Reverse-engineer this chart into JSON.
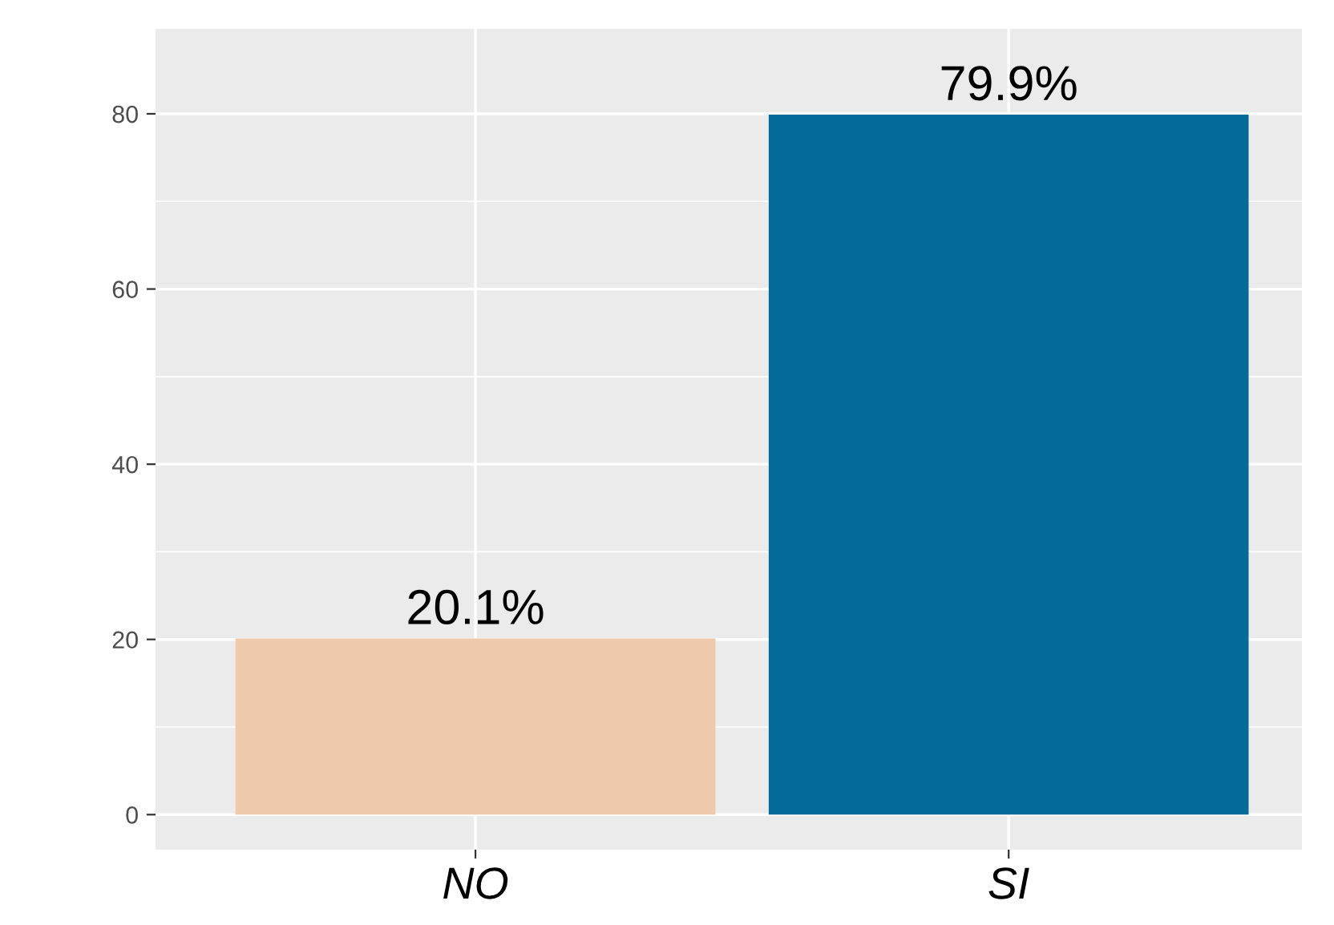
{
  "chart_data": {
    "type": "bar",
    "categories": [
      "NO",
      "SI"
    ],
    "values": [
      20.1,
      79.9
    ],
    "colors": [
      "#eccaab",
      "#036a9a"
    ],
    "value_labels": [
      "20.1%",
      "79.9%"
    ],
    "ylim": [
      -4,
      89.7
    ],
    "yticks": [
      0,
      20,
      40,
      60,
      80
    ],
    "grid": true,
    "legend": false
  }
}
